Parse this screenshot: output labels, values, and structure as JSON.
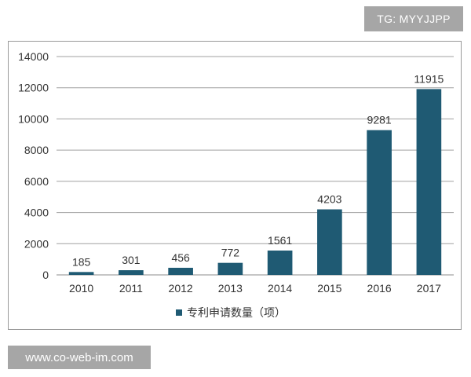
{
  "watermark_top": "TG: MYYJJPP",
  "watermark_bottom": "www.co-web-im.com",
  "chart_data": {
    "type": "bar",
    "categories": [
      "2010",
      "2011",
      "2012",
      "2013",
      "2014",
      "2015",
      "2016",
      "2017"
    ],
    "series": [
      {
        "name": "专利申请数量（项）",
        "values": [
          185,
          301,
          456,
          772,
          1561,
          4203,
          9281,
          11915
        ],
        "color": "#1f5a73"
      }
    ],
    "ylim": [
      0,
      14000
    ],
    "yticks": [
      0,
      2000,
      4000,
      6000,
      8000,
      10000,
      12000,
      14000
    ],
    "grid": true,
    "legend_position": "bottom",
    "title": "",
    "xlabel": "",
    "ylabel": ""
  }
}
